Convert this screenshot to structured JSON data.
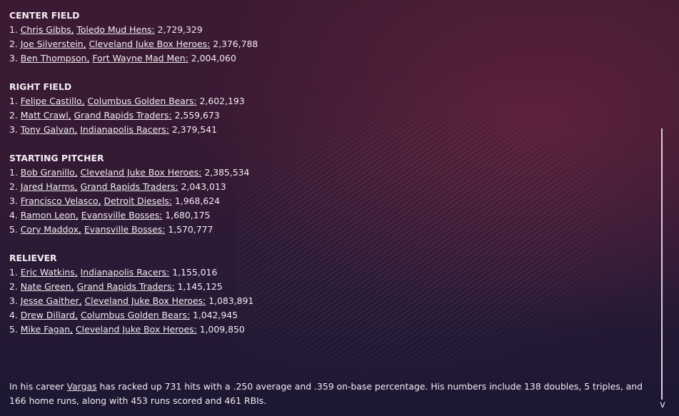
{
  "sections": [
    {
      "title": "CENTER FIELD",
      "entries": [
        {
          "rank": "1.",
          "player": "Chris Gibbs,",
          "team": "Toledo  Mud Hens:",
          "amount": "2,729,329"
        },
        {
          "rank": "2.",
          "player": "Joe Silverstein,",
          "team": "Cleveland Juke Box Heroes:",
          "amount": "2,376,788"
        },
        {
          "rank": "3.",
          "player": "Ben Thompson,",
          "team": "Fort Wayne Mad Men:",
          "amount": "2,004,060"
        }
      ]
    },
    {
      "title": "RIGHT FIELD",
      "entries": [
        {
          "rank": "1.",
          "player": "Felipe Castillo,",
          "team": "Columbus Golden Bears:",
          "amount": "2,602,193"
        },
        {
          "rank": "2.",
          "player": "Matt Crawl,",
          "team": "Grand Rapids Traders:",
          "amount": "2,559,673"
        },
        {
          "rank": "3.",
          "player": "Tony Galvan,",
          "team": "Indianapolis Racers:",
          "amount": "2,379,541"
        }
      ]
    },
    {
      "title": "STARTING PITCHER",
      "entries": [
        {
          "rank": "1.",
          "player": "Bob Granillo,",
          "team": "Cleveland Juke Box Heroes:",
          "amount": "2,385,534"
        },
        {
          "rank": "2.",
          "player": "Jared Harms,",
          "team": "Grand Rapids Traders:",
          "amount": "2,043,013"
        },
        {
          "rank": "3.",
          "player": "Francisco Velasco,",
          "team": "Detroit Diesels:",
          "amount": "1,968,624"
        },
        {
          "rank": "4.",
          "player": "Ramon Leon,",
          "team": "Evansville Bosses:",
          "amount": "1,680,175"
        },
        {
          "rank": "5.",
          "player": "Cory Maddox,",
          "team": "Evansville Bosses:",
          "amount": "1,570,777"
        }
      ]
    },
    {
      "title": "RELIEVER",
      "entries": [
        {
          "rank": "1.",
          "player": "Eric Watkins,",
          "team": "Indianapolis Racers:",
          "amount": "1,155,016"
        },
        {
          "rank": "2.",
          "player": "Nate Green,",
          "team": "Grand Rapids Traders:",
          "amount": "1,145,125"
        },
        {
          "rank": "3.",
          "player": "Jesse Gaither,",
          "team": "Cleveland Juke Box Heroes:",
          "amount": "1,083,891"
        },
        {
          "rank": "4.",
          "player": "Drew Dillard,",
          "team": "Columbus Golden Bears:",
          "amount": "1,042,945"
        },
        {
          "rank": "5.",
          "player": "Mike Fagan,",
          "team": "Cleveland Juke Box Heroes:",
          "amount": "1,009,850"
        }
      ]
    }
  ],
  "summary": {
    "intro": "In his career ",
    "player_link": "Vargas",
    "rest": " has racked up 731 hits with a .250 average and .359 on-base percentage. His numbers include 138 doubles, 5 triples, and 166 home runs, along with 453 runs scored and 461 RBIs."
  },
  "scrollbar": {
    "down_glyph": "v"
  },
  "colors": {
    "text": "#f2eef2",
    "bg_top": "#3d1a33",
    "bg_bottom": "#1c1733"
  }
}
